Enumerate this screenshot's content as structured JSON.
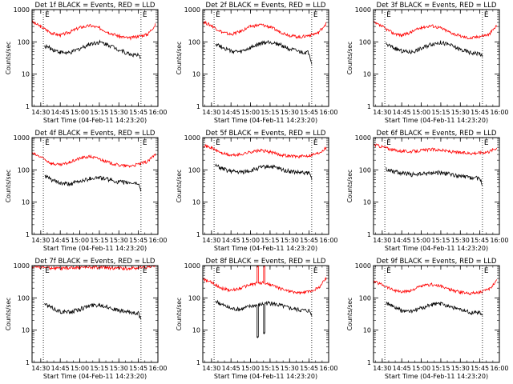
{
  "figure": {
    "ylabel": "Counts/sec",
    "xlabel": "Start Time (04-Feb-11 14:23:20)"
  },
  "chart_data": [
    {
      "type": "line",
      "title": "Det 1f BLACK = Events, RED = LLD",
      "ylabel": "Counts/sec",
      "xlabel": "Start Time (04-Feb-11 14:23:20)",
      "xticks": [
        "14:30",
        "14:45",
        "15:00",
        "15:15",
        "15:30",
        "15:45",
        "16:00"
      ],
      "yticks": [
        "1",
        "10",
        "100",
        "1000"
      ],
      "ylim": [
        1,
        1000
      ],
      "yscale": "log",
      "xlim": [
        "14:23:20",
        "16:00"
      ],
      "markers": [
        {
          "time": "14:32",
          "label": "E"
        },
        {
          "time": "15:47",
          "label": "E"
        }
      ],
      "series": [
        {
          "color": "#ff0000",
          "x": [
            "14:23",
            "14:30",
            "14:38",
            "14:45",
            "14:52",
            "15:00",
            "15:08",
            "15:15",
            "15:22",
            "15:30",
            "15:38",
            "15:45",
            "15:52",
            "15:58"
          ],
          "y": [
            420,
            300,
            190,
            160,
            200,
            280,
            320,
            270,
            200,
            150,
            130,
            150,
            170,
            340
          ]
        },
        {
          "color": "#000000",
          "x": [
            "14:33",
            "14:38",
            "14:45",
            "14:52",
            "15:00",
            "15:08",
            "15:15",
            "15:22",
            "15:30",
            "15:38",
            "15:45",
            "15:47"
          ],
          "y": [
            75,
            62,
            48,
            45,
            62,
            88,
            98,
            82,
            58,
            42,
            38,
            28
          ]
        }
      ]
    },
    {
      "type": "line",
      "title": "Det 2f BLACK = Events, RED = LLD",
      "ylabel": "Counts/sec",
      "xlabel": "Start Time (04-Feb-11 14:23:20)",
      "xticks": [
        "14:30",
        "14:45",
        "15:00",
        "15:15",
        "15:30",
        "15:45",
        "16:00"
      ],
      "yticks": [
        "1",
        "10",
        "100",
        "1000"
      ],
      "ylim": [
        1,
        1000
      ],
      "yscale": "log",
      "xlim": [
        "14:23:20",
        "16:00"
      ],
      "markers": [
        {
          "time": "14:32",
          "label": "E"
        },
        {
          "time": "15:47",
          "label": "E"
        }
      ],
      "series": [
        {
          "color": "#ff0000",
          "x": [
            "14:23",
            "14:30",
            "14:38",
            "14:45",
            "14:52",
            "15:00",
            "15:08",
            "15:15",
            "15:22",
            "15:30",
            "15:38",
            "15:45",
            "15:52",
            "15:58"
          ],
          "y": [
            430,
            320,
            200,
            170,
            210,
            300,
            340,
            290,
            210,
            160,
            140,
            160,
            190,
            370
          ]
        },
        {
          "color": "#000000",
          "x": [
            "14:33",
            "14:38",
            "14:45",
            "14:52",
            "15:00",
            "15:08",
            "15:15",
            "15:22",
            "15:30",
            "15:38",
            "15:45",
            "15:47"
          ],
          "y": [
            90,
            70,
            52,
            48,
            65,
            90,
            100,
            85,
            60,
            48,
            46,
            22
          ]
        }
      ]
    },
    {
      "type": "line",
      "title": "Det 3f BLACK = Events, RED = LLD",
      "ylabel": "Counts/sec",
      "xlabel": "Start Time (04-Feb-11 14:23:20)",
      "xticks": [
        "14:30",
        "14:45",
        "15:00",
        "15:15",
        "15:30",
        "15:45",
        "16:00"
      ],
      "yticks": [
        "1",
        "10",
        "100",
        "1000"
      ],
      "ylim": [
        1,
        1000
      ],
      "yscale": "log",
      "xlim": [
        "14:23:20",
        "16:00"
      ],
      "markers": [
        {
          "time": "14:32",
          "label": "E"
        },
        {
          "time": "15:47",
          "label": "E"
        }
      ],
      "series": [
        {
          "color": "#ff0000",
          "x": [
            "14:23",
            "14:30",
            "14:38",
            "14:45",
            "14:52",
            "15:00",
            "15:08",
            "15:15",
            "15:22",
            "15:30",
            "15:38",
            "15:45",
            "15:52",
            "15:58"
          ],
          "y": [
            400,
            300,
            190,
            160,
            200,
            280,
            320,
            270,
            200,
            150,
            130,
            150,
            170,
            320
          ]
        },
        {
          "color": "#000000",
          "x": [
            "14:33",
            "14:38",
            "14:45",
            "14:52",
            "15:00",
            "15:08",
            "15:15",
            "15:22",
            "15:30",
            "15:38",
            "15:45",
            "15:47"
          ],
          "y": [
            85,
            68,
            52,
            48,
            62,
            88,
            96,
            80,
            58,
            46,
            44,
            34
          ]
        }
      ]
    },
    {
      "type": "line",
      "title": "Det 4f BLACK = Events, RED = LLD",
      "ylabel": "Counts/sec",
      "xlabel": "Start Time (04-Feb-11 14:23:20)",
      "xticks": [
        "14:30",
        "14:45",
        "15:00",
        "15:15",
        "15:30",
        "15:45",
        "16:00"
      ],
      "yticks": [
        "1",
        "10",
        "100",
        "1000"
      ],
      "ylim": [
        1,
        1000
      ],
      "yscale": "log",
      "xlim": [
        "14:23:20",
        "16:00"
      ],
      "markers": [
        {
          "time": "14:32",
          "label": "E"
        },
        {
          "time": "15:47",
          "label": "E"
        }
      ],
      "series": [
        {
          "color": "#ff0000",
          "x": [
            "14:23",
            "14:30",
            "14:38",
            "14:45",
            "14:52",
            "15:00",
            "15:08",
            "15:15",
            "15:22",
            "15:30",
            "15:38",
            "15:45",
            "15:52",
            "15:58"
          ],
          "y": [
            330,
            250,
            160,
            140,
            170,
            230,
            260,
            220,
            170,
            140,
            130,
            150,
            180,
            300
          ]
        },
        {
          "color": "#000000",
          "x": [
            "14:33",
            "14:38",
            "14:45",
            "14:52",
            "15:00",
            "15:08",
            "15:15",
            "15:22",
            "15:30",
            "15:38",
            "15:45",
            "15:47"
          ],
          "y": [
            65,
            50,
            38,
            36,
            44,
            55,
            58,
            50,
            42,
            40,
            38,
            22
          ]
        }
      ]
    },
    {
      "type": "line",
      "title": "Det 5f BLACK = Events, RED = LLD",
      "ylabel": "Counts/sec",
      "xlabel": "Start Time (04-Feb-11 14:23:20)",
      "xticks": [
        "14:30",
        "14:45",
        "15:00",
        "15:15",
        "15:30",
        "15:45",
        "16:00"
      ],
      "yticks": [
        "1",
        "10",
        "100",
        "1000"
      ],
      "ylim": [
        1,
        1000
      ],
      "yscale": "log",
      "xlim": [
        "14:23:20",
        "16:00"
      ],
      "markers": [
        {
          "time": "14:32",
          "label": "E"
        },
        {
          "time": "15:47",
          "label": "E"
        }
      ],
      "series": [
        {
          "color": "#ff0000",
          "x": [
            "14:23",
            "14:30",
            "14:38",
            "14:45",
            "14:52",
            "15:00",
            "15:08",
            "15:15",
            "15:22",
            "15:30",
            "15:38",
            "15:45",
            "15:52",
            "15:58"
          ],
          "y": [
            600,
            480,
            330,
            280,
            300,
            360,
            400,
            360,
            300,
            270,
            260,
            280,
            330,
            480
          ]
        },
        {
          "color": "#000000",
          "x": [
            "14:33",
            "14:38",
            "14:45",
            "14:52",
            "15:00",
            "15:08",
            "15:15",
            "15:22",
            "15:30",
            "15:38",
            "15:45",
            "15:47"
          ],
          "y": [
            135,
            110,
            90,
            85,
            95,
            120,
            130,
            110,
            90,
            82,
            80,
            55
          ]
        }
      ]
    },
    {
      "type": "line",
      "title": "Det 6f BLACK = Events, RED = LLD",
      "ylabel": "Counts/sec",
      "xlabel": "Start Time (04-Feb-11 14:23:20)",
      "xticks": [
        "14:30",
        "14:45",
        "15:00",
        "15:15",
        "15:30",
        "15:45",
        "16:00"
      ],
      "yticks": [
        "1",
        "10",
        "100",
        "1000"
      ],
      "ylim": [
        1,
        1000
      ],
      "yscale": "log",
      "xlim": [
        "14:23:20",
        "16:00"
      ],
      "markers": [
        {
          "time": "14:32",
          "label": "E"
        },
        {
          "time": "15:47",
          "label": "E"
        }
      ],
      "series": [
        {
          "color": "#ff0000",
          "x": [
            "14:23",
            "14:30",
            "14:38",
            "14:45",
            "14:52",
            "15:00",
            "15:08",
            "15:15",
            "15:22",
            "15:30",
            "15:38",
            "15:45",
            "15:52",
            "15:58"
          ],
          "y": [
            620,
            520,
            420,
            380,
            370,
            400,
            430,
            410,
            370,
            340,
            330,
            340,
            370,
            480
          ]
        },
        {
          "color": "#000000",
          "x": [
            "14:33",
            "14:38",
            "14:45",
            "14:52",
            "15:00",
            "15:08",
            "15:15",
            "15:22",
            "15:30",
            "15:38",
            "15:45",
            "15:47"
          ],
          "y": [
            105,
            92,
            80,
            72,
            74,
            80,
            82,
            74,
            62,
            58,
            55,
            35
          ]
        }
      ]
    },
    {
      "type": "line",
      "title": "Det 7f BLACK = Events, RED = LLD",
      "ylabel": "Counts/sec",
      "xlabel": "Start Time (04-Feb-11 14:23:20)",
      "xticks": [
        "14:30",
        "14:45",
        "15:00",
        "15:15",
        "15:30",
        "15:45",
        "16:00"
      ],
      "yticks": [
        "1",
        "10",
        "100",
        "1000"
      ],
      "ylim": [
        1,
        1000
      ],
      "yscale": "log",
      "xlim": [
        "14:23:20",
        "16:00"
      ],
      "markers": [
        {
          "time": "14:32",
          "label": "E"
        },
        {
          "time": "15:47",
          "label": "E"
        }
      ],
      "series": [
        {
          "color": "#ff0000",
          "x": [
            "14:23",
            "14:30",
            "14:38",
            "14:45",
            "14:52",
            "15:00",
            "15:08",
            "15:15",
            "15:22",
            "15:30",
            "15:38",
            "15:45",
            "15:52",
            "15:58"
          ],
          "y": [
            950,
            900,
            850,
            820,
            840,
            880,
            900,
            880,
            850,
            830,
            820,
            850,
            900,
            1000
          ]
        },
        {
          "color": "#000000",
          "x": [
            "14:33",
            "14:38",
            "14:45",
            "14:52",
            "15:00",
            "15:08",
            "15:15",
            "15:22",
            "15:30",
            "15:38",
            "15:45",
            "15:47"
          ],
          "y": [
            65,
            50,
            38,
            36,
            45,
            58,
            62,
            52,
            40,
            36,
            34,
            20
          ]
        }
      ]
    },
    {
      "type": "line",
      "title": "Det 8f BLACK = Events, RED = LLD",
      "ylabel": "Counts/sec",
      "xlabel": "Start Time (04-Feb-11 14:23:20)",
      "xticks": [
        "14:30",
        "14:45",
        "15:00",
        "15:15",
        "15:30",
        "15:45",
        "16:00"
      ],
      "yticks": [
        "1",
        "10",
        "100",
        "1000"
      ],
      "ylim": [
        1,
        1000
      ],
      "yscale": "log",
      "xlim": [
        "14:23:20",
        "16:00"
      ],
      "markers": [
        {
          "time": "14:32",
          "label": "E"
        },
        {
          "time": "15:47",
          "label": "E"
        }
      ],
      "series": [
        {
          "color": "#ff0000",
          "x": [
            "14:23",
            "14:30",
            "14:38",
            "14:45",
            "14:52",
            "15:00",
            "15:05",
            "15:05",
            "15:06",
            "15:06",
            "15:10",
            "15:10",
            "15:11",
            "15:11",
            "15:15",
            "15:22",
            "15:30",
            "15:38",
            "15:45",
            "15:52",
            "15:58"
          ],
          "y": [
            380,
            300,
            200,
            170,
            200,
            260,
            280,
            1000,
            1000,
            280,
            300,
            1000,
            1000,
            280,
            260,
            200,
            160,
            140,
            160,
            200,
            400
          ]
        },
        {
          "color": "#000000",
          "x": [
            "14:33",
            "14:38",
            "14:45",
            "14:52",
            "15:00",
            "15:05",
            "15:05",
            "15:06",
            "15:06",
            "15:10",
            "15:10",
            "15:11",
            "15:11",
            "15:15",
            "15:22",
            "15:30",
            "15:38",
            "15:45",
            "15:47"
          ],
          "y": [
            80,
            62,
            46,
            44,
            55,
            60,
            6,
            6,
            60,
            65,
            8,
            8,
            70,
            68,
            60,
            48,
            42,
            40,
            30
          ]
        }
      ]
    },
    {
      "type": "line",
      "title": "Det 9f BLACK = Events, RED = LLD",
      "ylabel": "Counts/sec",
      "xlabel": "Start Time (04-Feb-11 14:23:20)",
      "xticks": [
        "14:30",
        "14:45",
        "15:00",
        "15:15",
        "15:30",
        "15:45",
        "16:00"
      ],
      "yticks": [
        "1",
        "10",
        "100",
        "1000"
      ],
      "ylim": [
        1,
        1000
      ],
      "yscale": "log",
      "xlim": [
        "14:23:20",
        "16:00"
      ],
      "markers": [
        {
          "time": "14:32",
          "label": "E"
        },
        {
          "time": "15:47",
          "label": "E"
        }
      ],
      "series": [
        {
          "color": "#ff0000",
          "x": [
            "14:23",
            "14:30",
            "14:38",
            "14:45",
            "14:52",
            "15:00",
            "15:08",
            "15:15",
            "15:22",
            "15:30",
            "15:38",
            "15:45",
            "15:52",
            "15:58"
          ],
          "y": [
            330,
            260,
            180,
            150,
            170,
            230,
            260,
            230,
            180,
            150,
            140,
            150,
            180,
            360
          ]
        },
        {
          "color": "#000000",
          "x": [
            "14:33",
            "14:38",
            "14:45",
            "14:52",
            "15:00",
            "15:08",
            "15:15",
            "15:22",
            "15:30",
            "15:38",
            "15:45",
            "15:47"
          ],
          "y": [
            70,
            55,
            40,
            38,
            48,
            62,
            66,
            56,
            42,
            36,
            34,
            30
          ]
        }
      ]
    }
  ]
}
